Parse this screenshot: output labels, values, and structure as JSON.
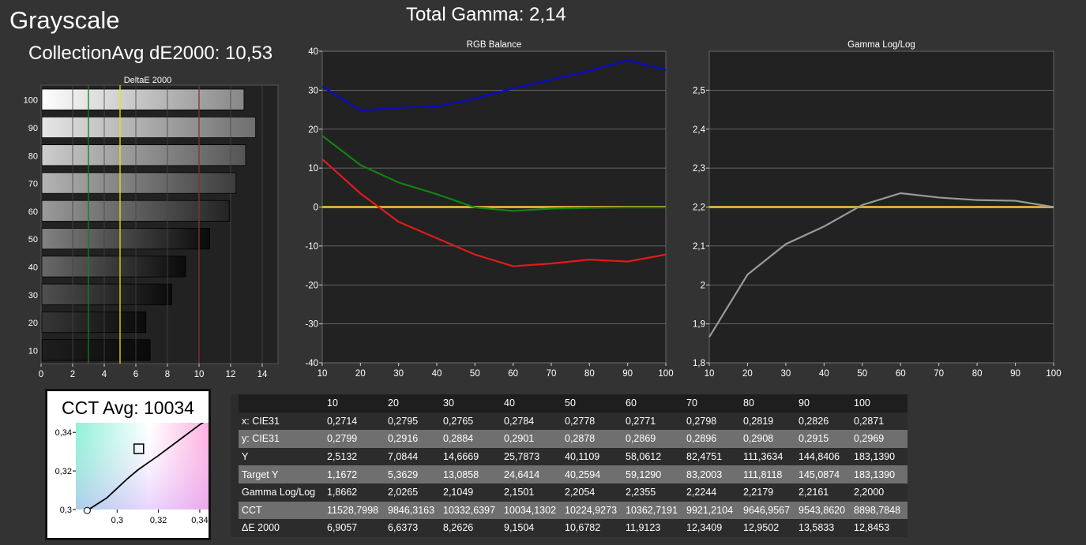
{
  "header": {
    "title": "Grayscale",
    "collection_avg": "CollectionAvg dE2000: 10,53",
    "total_gamma": "Total Gamma: 2,14"
  },
  "cct": {
    "label": "CCT Avg: 10034"
  },
  "colors": {
    "background": "#333333",
    "plot_bg": "#222222",
    "red": "#e01b1b",
    "green": "#148014",
    "blue": "#0a0acf",
    "target": "#d4a83a",
    "gamma_line": "#9a9a9a"
  },
  "chart_data": [
    {
      "type": "bar",
      "orientation": "horizontal",
      "title": "DeltaE 2000",
      "categories": [
        "100",
        "90",
        "80",
        "70",
        "60",
        "50",
        "40",
        "30",
        "20",
        "10"
      ],
      "values": [
        12.8453,
        13.5833,
        12.9502,
        12.3409,
        11.9123,
        10.6782,
        9.1504,
        8.2626,
        6.6373,
        6.9057
      ],
      "xlim": [
        0,
        15
      ],
      "xticks": [
        "0",
        "2",
        "4",
        "6",
        "8",
        "10",
        "12",
        "14"
      ],
      "thresholds": [
        {
          "value": 3,
          "color": "#148014"
        },
        {
          "value": 5,
          "color": "#e6e600"
        },
        {
          "value": 10,
          "color": "#e01b1b"
        }
      ]
    },
    {
      "type": "line",
      "title": "RGB Balance",
      "x": [
        10,
        20,
        30,
        40,
        50,
        60,
        70,
        80,
        90,
        100
      ],
      "xticks": [
        "10",
        "20",
        "30",
        "40",
        "50",
        "60",
        "70",
        "80",
        "90",
        "100"
      ],
      "yticks": [
        "40",
        "30",
        "20",
        "10",
        "0",
        "-10",
        "-20",
        "-30",
        "-40"
      ],
      "xlim": [
        10,
        100
      ],
      "ylim": [
        -40,
        40
      ],
      "series": [
        {
          "color": "#0a0acf",
          "values": [
            31,
            24.8,
            25.5,
            25.8,
            27.8,
            30.5,
            32.7,
            35,
            37.7,
            35.2
          ]
        },
        {
          "color": "#148014",
          "values": [
            18.3,
            10.8,
            6.3,
            3.3,
            -0.1,
            -1,
            -0.4,
            -0.2,
            -0.1,
            -0.1
          ]
        },
        {
          "color": "#e01b1b",
          "values": [
            12.3,
            3.5,
            -3.8,
            -8,
            -12.2,
            -15.2,
            -14.5,
            -13.5,
            -14,
            -12.2
          ]
        },
        {
          "color": "#d4a83a",
          "values": [
            0,
            0,
            0,
            0,
            0,
            0,
            0,
            0,
            0,
            0
          ]
        }
      ],
      "grid": "horizontal"
    },
    {
      "type": "line",
      "title": "Gamma Log/Log",
      "x": [
        10,
        20,
        30,
        40,
        50,
        60,
        70,
        80,
        90,
        100
      ],
      "xticks": [
        "10",
        "20",
        "30",
        "40",
        "50",
        "60",
        "70",
        "80",
        "90",
        "100"
      ],
      "yticks": [
        "2,5",
        "2,4",
        "2,3",
        "2,2",
        "2,1",
        "2",
        "1,9",
        "1,8"
      ],
      "xlim": [
        10,
        100
      ],
      "ylim": [
        1.8,
        2.6
      ],
      "series": [
        {
          "color": "#9a9a9a",
          "values": [
            1.8662,
            2.0265,
            2.1049,
            2.1501,
            2.2054,
            2.2355,
            2.2244,
            2.2179,
            2.2161,
            2.2
          ]
        },
        {
          "color": "#d4a83a",
          "values": [
            2.2,
            2.2,
            2.2,
            2.2,
            2.2,
            2.2,
            2.2,
            2.2,
            2.2,
            2.2
          ]
        }
      ],
      "grid": "horizontal"
    },
    {
      "type": "scatter",
      "title": "",
      "xticks": [
        "0,3",
        "0,32",
        "0,34"
      ],
      "yticks": [
        "0,34",
        "0,32",
        "0,3"
      ],
      "xlim": [
        0.28,
        0.345
      ],
      "ylim": [
        0.3,
        0.345
      ],
      "points": [
        {
          "x": 0.3105,
          "y": 0.3315,
          "marker": "square"
        },
        {
          "x": 0.2855,
          "y": 0.2995,
          "marker": "circle"
        }
      ],
      "locus": [
        [
          0.2855,
          0.2995
        ],
        [
          0.295,
          0.306
        ],
        [
          0.305,
          0.316
        ],
        [
          0.31,
          0.3205
        ],
        [
          0.32,
          0.328
        ],
        [
          0.33,
          0.336
        ],
        [
          0.34,
          0.344
        ],
        [
          0.345,
          0.3475
        ]
      ]
    }
  ],
  "table": {
    "columns": [
      "10",
      "20",
      "30",
      "40",
      "50",
      "60",
      "70",
      "80",
      "90",
      "100"
    ],
    "rows": [
      {
        "label": "x: CIE31",
        "values": [
          "0,2714",
          "0,2795",
          "0,2765",
          "0,2784",
          "0,2778",
          "0,2771",
          "0,2798",
          "0,2819",
          "0,2826",
          "0,2871"
        ]
      },
      {
        "label": "y: CIE31",
        "values": [
          "0,2799",
          "0,2916",
          "0,2884",
          "0,2901",
          "0,2878",
          "0,2869",
          "0,2896",
          "0,2908",
          "0,2915",
          "0,2969"
        ]
      },
      {
        "label": "Y",
        "values": [
          "2,5132",
          "7,0844",
          "14,6669",
          "25,7873",
          "40,1109",
          "58,0612",
          "82,4751",
          "111,3634",
          "144,8406",
          "183,1390"
        ]
      },
      {
        "label": "Target Y",
        "values": [
          "1,1672",
          "5,3629",
          "13,0858",
          "24,6414",
          "40,2594",
          "59,1290",
          "83,2003",
          "111,8118",
          "145,0874",
          "183,1390"
        ]
      },
      {
        "label": "Gamma Log/Log",
        "values": [
          "1,8662",
          "2,0265",
          "2,1049",
          "2,1501",
          "2,2054",
          "2,2355",
          "2,2244",
          "2,2179",
          "2,2161",
          "2,2000"
        ]
      },
      {
        "label": "CCT",
        "values": [
          "11528,7998",
          "9846,3163",
          "10332,6397",
          "10034,1302",
          "10224,9273",
          "10362,7191",
          "9921,2104",
          "9646,9567",
          "9543,8620",
          "8898,7848"
        ]
      },
      {
        "label": "ΔE 2000",
        "values": [
          "6,9057",
          "6,6373",
          "8,2626",
          "9,1504",
          "10,6782",
          "11,9123",
          "12,3409",
          "12,9502",
          "13,5833",
          "12,8453"
        ]
      }
    ]
  }
}
